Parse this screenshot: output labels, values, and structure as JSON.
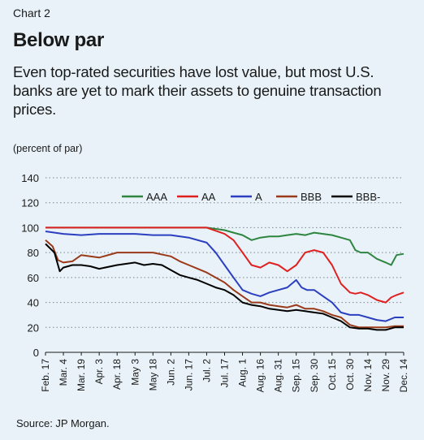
{
  "header": {
    "chart_number": "Chart 2",
    "title": "Below par",
    "subtitle": "Even top-rated securities have lost value, but most U.S. banks are yet to mark their assets to genuine transaction prices.",
    "unit_label": "(percent of par)"
  },
  "footer": {
    "source": "Source: JP Morgan."
  },
  "chart_data": {
    "type": "line",
    "title": "Below par",
    "ylabel": "(percent of par)",
    "xlabel": "",
    "ylim": [
      0,
      140
    ],
    "yticks": [
      "0",
      "20",
      "40",
      "60",
      "80",
      "100",
      "120",
      "140"
    ],
    "x_tick_labels": [
      "Feb. 17",
      "Mar. 4",
      "Mar. 19",
      "Apr. 3",
      "Apr. 18",
      "May 3",
      "May 18",
      "Jun. 2",
      "Jun. 17",
      "Jul. 2",
      "Jul. 17",
      "Aug. 1",
      "Aug. 16",
      "Aug. 31",
      "Sep. 15",
      "Sep. 30",
      "Oct. 15",
      "Oct. 30",
      "Nov. 14",
      "Nov. 29",
      "Dec. 14"
    ],
    "grid": "horizontal dotted",
    "legend_position": "top-right",
    "series": [
      {
        "name": "AAA",
        "color": "#2e8540",
        "points": [
          [
            0,
            100
          ],
          [
            1,
            100
          ],
          [
            2,
            100
          ],
          [
            3,
            100
          ],
          [
            4,
            100
          ],
          [
            5,
            100
          ],
          [
            6,
            100
          ],
          [
            7,
            100
          ],
          [
            8,
            100
          ],
          [
            9,
            100
          ],
          [
            10,
            98
          ],
          [
            10.5,
            96
          ],
          [
            11,
            94
          ],
          [
            11.5,
            90
          ],
          [
            12,
            92
          ],
          [
            12.5,
            93
          ],
          [
            13,
            93
          ],
          [
            13.5,
            94
          ],
          [
            14,
            95
          ],
          [
            14.5,
            94
          ],
          [
            15,
            96
          ],
          [
            15.5,
            95
          ],
          [
            16,
            94
          ],
          [
            16.5,
            92
          ],
          [
            17,
            90
          ],
          [
            17.3,
            82
          ],
          [
            17.6,
            80
          ],
          [
            18,
            80
          ],
          [
            18.5,
            75
          ],
          [
            19,
            72
          ],
          [
            19.3,
            70
          ],
          [
            19.6,
            78
          ],
          [
            20,
            79
          ]
        ]
      },
      {
        "name": "AA",
        "color": "#e02020",
        "points": [
          [
            0,
            100
          ],
          [
            1,
            100
          ],
          [
            2,
            100
          ],
          [
            3,
            100
          ],
          [
            4,
            100
          ],
          [
            5,
            100
          ],
          [
            6,
            100
          ],
          [
            7,
            100
          ],
          [
            8,
            100
          ],
          [
            9,
            100
          ],
          [
            10,
            95
          ],
          [
            10.5,
            90
          ],
          [
            11,
            80
          ],
          [
            11.5,
            70
          ],
          [
            12,
            68
          ],
          [
            12.5,
            72
          ],
          [
            13,
            70
          ],
          [
            13.5,
            65
          ],
          [
            14,
            70
          ],
          [
            14.5,
            80
          ],
          [
            15,
            82
          ],
          [
            15.5,
            80
          ],
          [
            16,
            70
          ],
          [
            16.5,
            55
          ],
          [
            17,
            48
          ],
          [
            17.3,
            47
          ],
          [
            17.6,
            48
          ],
          [
            18,
            46
          ],
          [
            18.5,
            42
          ],
          [
            19,
            40
          ],
          [
            19.3,
            44
          ],
          [
            19.6,
            46
          ],
          [
            20,
            48
          ]
        ]
      },
      {
        "name": "A",
        "color": "#2b3fc0",
        "points": [
          [
            0,
            97
          ],
          [
            1,
            95
          ],
          [
            2,
            94
          ],
          [
            3,
            95
          ],
          [
            4,
            95
          ],
          [
            5,
            95
          ],
          [
            6,
            94
          ],
          [
            7,
            94
          ],
          [
            8,
            92
          ],
          [
            9,
            88
          ],
          [
            9.5,
            80
          ],
          [
            10,
            70
          ],
          [
            10.5,
            60
          ],
          [
            11,
            50
          ],
          [
            11.5,
            47
          ],
          [
            12,
            45
          ],
          [
            12.5,
            48
          ],
          [
            13,
            50
          ],
          [
            13.5,
            52
          ],
          [
            14,
            58
          ],
          [
            14.3,
            52
          ],
          [
            14.6,
            50
          ],
          [
            15,
            50
          ],
          [
            15.5,
            45
          ],
          [
            16,
            40
          ],
          [
            16.5,
            32
          ],
          [
            17,
            30
          ],
          [
            17.5,
            30
          ],
          [
            18,
            28
          ],
          [
            18.5,
            26
          ],
          [
            19,
            25
          ],
          [
            19.5,
            28
          ],
          [
            20,
            28
          ]
        ]
      },
      {
        "name": "BBB",
        "color": "#9b3a1a",
        "points": [
          [
            0,
            90
          ],
          [
            0.4,
            85
          ],
          [
            0.7,
            74
          ],
          [
            1,
            72
          ],
          [
            1.5,
            73
          ],
          [
            2,
            78
          ],
          [
            3,
            76
          ],
          [
            4,
            80
          ],
          [
            5,
            80
          ],
          [
            6,
            80
          ],
          [
            7,
            77
          ],
          [
            7.5,
            73
          ],
          [
            8,
            70
          ],
          [
            8.5,
            67
          ],
          [
            9,
            64
          ],
          [
            9.5,
            60
          ],
          [
            10,
            56
          ],
          [
            10.5,
            50
          ],
          [
            11,
            45
          ],
          [
            11.5,
            40
          ],
          [
            12,
            40
          ],
          [
            12.5,
            38
          ],
          [
            13,
            37
          ],
          [
            13.5,
            36
          ],
          [
            14,
            38
          ],
          [
            14.5,
            35
          ],
          [
            15,
            35
          ],
          [
            15.5,
            33
          ],
          [
            16,
            30
          ],
          [
            16.5,
            28
          ],
          [
            17,
            22
          ],
          [
            17.5,
            20
          ],
          [
            18,
            20
          ],
          [
            18.5,
            20
          ],
          [
            19,
            20
          ],
          [
            19.5,
            21
          ],
          [
            20,
            21
          ]
        ]
      },
      {
        "name": "BBB-",
        "color": "#000000",
        "points": [
          [
            0,
            87
          ],
          [
            0.5,
            80
          ],
          [
            0.8,
            65
          ],
          [
            1,
            68
          ],
          [
            1.5,
            70
          ],
          [
            2,
            70
          ],
          [
            2.5,
            69
          ],
          [
            3,
            67
          ],
          [
            4,
            70
          ],
          [
            5,
            72
          ],
          [
            5.5,
            70
          ],
          [
            6,
            71
          ],
          [
            6.5,
            70
          ],
          [
            7,
            66
          ],
          [
            7.5,
            62
          ],
          [
            8,
            60
          ],
          [
            8.5,
            58
          ],
          [
            9,
            55
          ],
          [
            9.5,
            52
          ],
          [
            10,
            50
          ],
          [
            10.5,
            46
          ],
          [
            11,
            40
          ],
          [
            11.5,
            38
          ],
          [
            12,
            37
          ],
          [
            12.5,
            35
          ],
          [
            13,
            34
          ],
          [
            13.5,
            33
          ],
          [
            14,
            34
          ],
          [
            14.5,
            33
          ],
          [
            15,
            32
          ],
          [
            15.5,
            31
          ],
          [
            16,
            28
          ],
          [
            16.5,
            25
          ],
          [
            17,
            20
          ],
          [
            17.5,
            19
          ],
          [
            18,
            19
          ],
          [
            18.5,
            18
          ],
          [
            19,
            18
          ],
          [
            19.5,
            20
          ],
          [
            20,
            20
          ]
        ]
      }
    ]
  }
}
